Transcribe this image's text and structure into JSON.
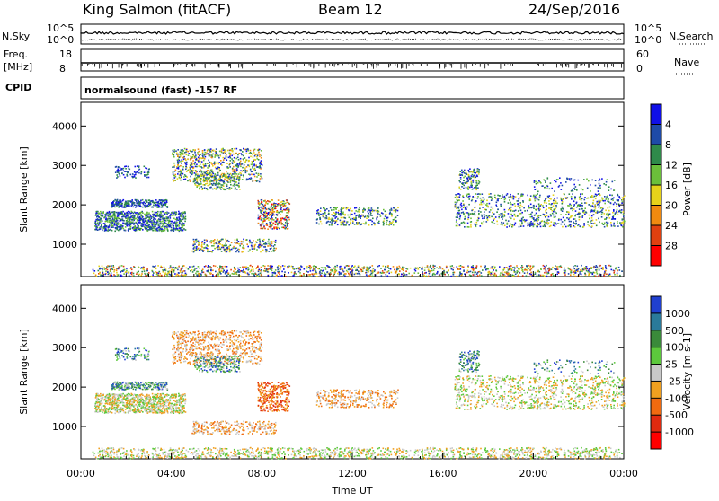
{
  "header": {
    "station": "King Salmon (fitACF)",
    "beam": "Beam 12",
    "date": "24/Sep/2016"
  },
  "strips": {
    "nsky_label": "N.Sky",
    "nsky_ticks": [
      "10^5",
      "10^0"
    ],
    "nsearch_label": "N.Search",
    "nsearch_ticks": [
      "10^5",
      "10^0"
    ],
    "freq_label_1": "Freq.",
    "freq_label_2": "[MHz]",
    "freq_ticks": [
      "18",
      "8"
    ],
    "nave_label": "Nave",
    "nave_ticks": [
      "60",
      "0"
    ],
    "cpid_label": "CPID",
    "cpid_text": "normalsound (fast) -157 RF"
  },
  "chart_data": [
    {
      "type": "heatmap",
      "name": "power-panel",
      "ylabel": "Slant Range [km]",
      "xlabel": "",
      "ylim": [
        180,
        4600
      ],
      "xlim": [
        0,
        24
      ],
      "y_ticks": [
        "1000",
        "2000",
        "3000",
        "4000"
      ],
      "y_tick_values": [
        1000,
        2000,
        3000,
        4000
      ],
      "colorbar": {
        "label": "Power [dB]",
        "ticks": [
          "4",
          "8",
          "12",
          "16",
          "20",
          "24",
          "28"
        ],
        "colors": [
          "#1010e8",
          "#1e4aa8",
          "#2f8a4a",
          "#6bbf3a",
          "#e6d21a",
          "#f08a10",
          "#e04010",
          "#ff0000"
        ]
      }
    },
    {
      "type": "heatmap",
      "name": "velocity-panel",
      "ylabel": "Slant Range [km]",
      "xlabel": "Time UT",
      "ylim": [
        180,
        4600
      ],
      "xlim": [
        0,
        24
      ],
      "y_ticks": [
        "1000",
        "2000",
        "3000",
        "4000"
      ],
      "y_tick_values": [
        1000,
        2000,
        3000,
        4000
      ],
      "x_ticks": [
        "00:00",
        "04:00",
        "08:00",
        "12:00",
        "16:00",
        "20:00",
        "00:00"
      ],
      "x_tick_values": [
        0,
        4,
        8,
        12,
        16,
        20,
        24
      ],
      "colorbar": {
        "label": "Velocity [m s-1]",
        "ticks": [
          "1000",
          "500",
          "100",
          "25",
          "-25",
          "-100",
          "-500",
          "-1000"
        ],
        "colors": [
          "#2040d0",
          "#2a7a9a",
          "#3a8a3a",
          "#5cc83c",
          "#c8c8c8",
          "#f0a020",
          "#f06a10",
          "#e02a10",
          "#ff0000"
        ]
      }
    }
  ]
}
